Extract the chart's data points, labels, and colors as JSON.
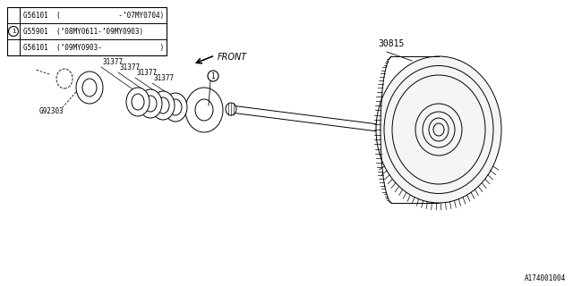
{
  "bg_color": "#ffffff",
  "line_color": "#000000",
  "part_number_main": "30815",
  "part_number_ring": "G92303",
  "front_label": "FRONT",
  "doc_number": "A174001004",
  "circle_label": "1",
  "table_rows": [
    "G56101  (                 -’07MY0704)",
    "G55901  (’08MY0611-’09MY0903)",
    "G56101  (’09MY0903-                  )"
  ]
}
